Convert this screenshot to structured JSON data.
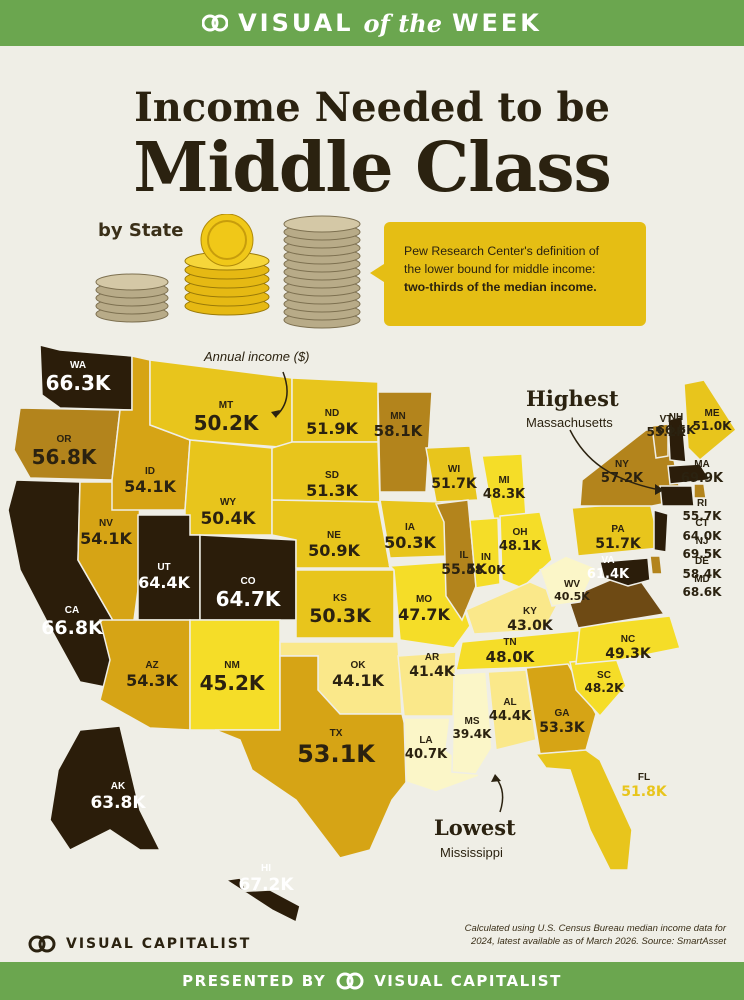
{
  "header": {
    "visual": "VISUAL",
    "of_the": "of the",
    "week": "WEEK",
    "title_line1": "Income Needed to be",
    "title_line2": "Middle Class",
    "subtitle": "by State"
  },
  "definition": {
    "line1": "Pew Research Center's definition of",
    "line2": "the lower bound for middle income:",
    "line3": "two-thirds of the median income."
  },
  "annotations": {
    "annual_income": "Annual income ($)",
    "highest_label": "Highest",
    "highest_state": "Massachusetts",
    "lowest_label": "Lowest",
    "lowest_state": "Mississippi"
  },
  "colors": {
    "darkest": "#2b1d0a",
    "dark": "#6e4a14",
    "mid_dark": "#b3841c",
    "mid": "#d6a415",
    "yellow": "#e8c51c",
    "bright": "#f5dd28",
    "light": "#fae88a",
    "palest": "#fbf6c8",
    "green_bar": "#6ba64f"
  },
  "chart_data": {
    "type": "choropleth",
    "unit": "annual income (USD, thousands)",
    "states": [
      {
        "abbr": "WA",
        "value": "66.3K"
      },
      {
        "abbr": "OR",
        "value": "56.8K"
      },
      {
        "abbr": "CA",
        "value": "66.8K"
      },
      {
        "abbr": "NV",
        "value": "54.1K"
      },
      {
        "abbr": "ID",
        "value": "54.1K"
      },
      {
        "abbr": "MT",
        "value": "50.2K"
      },
      {
        "abbr": "WY",
        "value": "50.4K"
      },
      {
        "abbr": "UT",
        "value": "64.4K"
      },
      {
        "abbr": "CO",
        "value": "64.7K"
      },
      {
        "abbr": "AZ",
        "value": "54.3K"
      },
      {
        "abbr": "NM",
        "value": "45.2K"
      },
      {
        "abbr": "ND",
        "value": "51.9K"
      },
      {
        "abbr": "SD",
        "value": "51.3K"
      },
      {
        "abbr": "NE",
        "value": "50.9K"
      },
      {
        "abbr": "KS",
        "value": "50.3K"
      },
      {
        "abbr": "OK",
        "value": "44.1K"
      },
      {
        "abbr": "TX",
        "value": "53.1K"
      },
      {
        "abbr": "MN",
        "value": "58.1K"
      },
      {
        "abbr": "IA",
        "value": "50.3K"
      },
      {
        "abbr": "MO",
        "value": "47.7K"
      },
      {
        "abbr": "AR",
        "value": "41.4K"
      },
      {
        "abbr": "LA",
        "value": "40.7K"
      },
      {
        "abbr": "WI",
        "value": "51.7K"
      },
      {
        "abbr": "IL",
        "value": "55.5K"
      },
      {
        "abbr": "MI",
        "value": "48.3K"
      },
      {
        "abbr": "IN",
        "value": "48.0K"
      },
      {
        "abbr": "OH",
        "value": "48.1K"
      },
      {
        "abbr": "KY",
        "value": "43.0K"
      },
      {
        "abbr": "TN",
        "value": "48.0K"
      },
      {
        "abbr": "MS",
        "value": "39.4K"
      },
      {
        "abbr": "AL",
        "value": "44.4K"
      },
      {
        "abbr": "GA",
        "value": "53.3K"
      },
      {
        "abbr": "FL",
        "value": "51.8K"
      },
      {
        "abbr": "SC",
        "value": "48.2K"
      },
      {
        "abbr": "NC",
        "value": "49.3K"
      },
      {
        "abbr": "VA",
        "value": "61.4K"
      },
      {
        "abbr": "WV",
        "value": "40.5K"
      },
      {
        "abbr": "PA",
        "value": "51.7K"
      },
      {
        "abbr": "NY",
        "value": "57.2K"
      },
      {
        "abbr": "VT",
        "value": "55.2K"
      },
      {
        "abbr": "NH",
        "value": "66.5K"
      },
      {
        "abbr": "ME",
        "value": "51.0K"
      },
      {
        "abbr": "MA",
        "value": "69.9K"
      },
      {
        "abbr": "RI",
        "value": "55.7K"
      },
      {
        "abbr": "CT",
        "value": "64.0K"
      },
      {
        "abbr": "NJ",
        "value": "69.5K"
      },
      {
        "abbr": "DE",
        "value": "58.4K"
      },
      {
        "abbr": "MD",
        "value": "68.6K"
      },
      {
        "abbr": "AK",
        "value": "63.8K"
      },
      {
        "abbr": "HI",
        "value": "67.2K"
      }
    ]
  },
  "footer": {
    "brand": "VISUAL CAPITALIST",
    "source_line1": "Calculated using U.S. Census Bureau median income data for",
    "source_line2": "2024, latest available as of March 2026. Source: SmartAsset",
    "presented_by": "PRESENTED BY",
    "presented_brand": "VISUAL CAPITALIST"
  }
}
